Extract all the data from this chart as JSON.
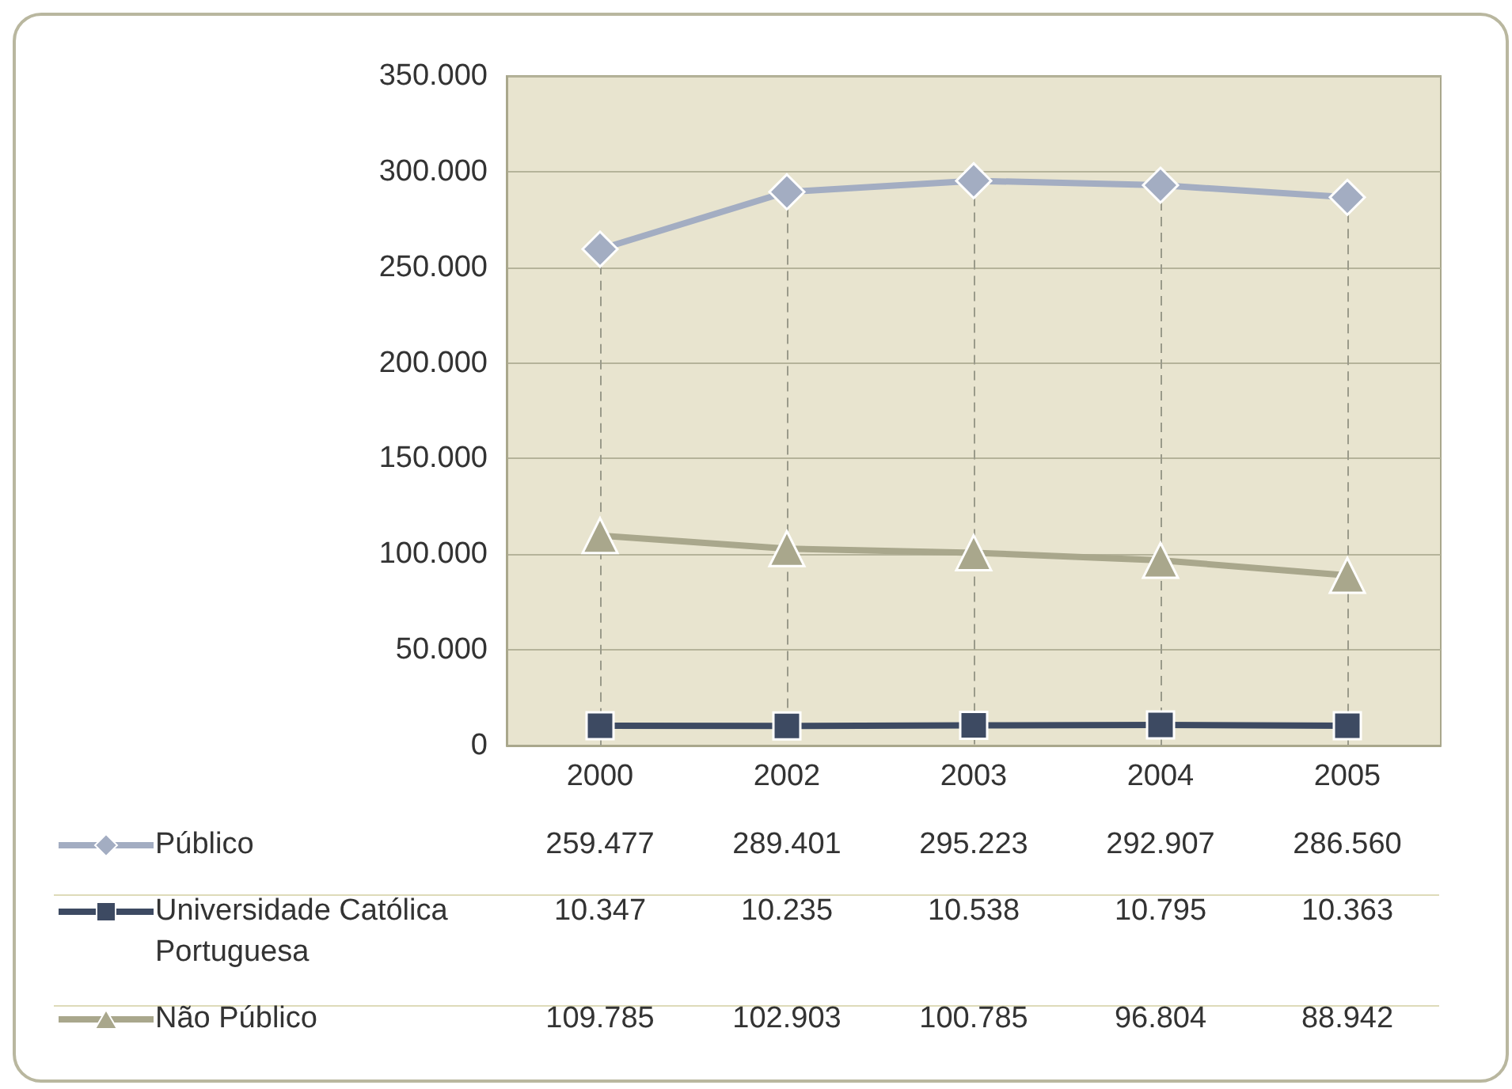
{
  "chart_data": {
    "type": "line",
    "categories": [
      "2000",
      "2002",
      "2003",
      "2004",
      "2005"
    ],
    "series": [
      {
        "name": "Público",
        "color": "#a3adc2",
        "marker": "diamond",
        "values": [
          259477,
          289401,
          295223,
          292907,
          286560
        ],
        "value_labels": [
          "259.477",
          "289.401",
          "295.223",
          "292.907",
          "286.560"
        ]
      },
      {
        "name": "Universidade Católica Portuguesa",
        "color": "#3d4a62",
        "marker": "square",
        "values": [
          10347,
          10235,
          10538,
          10795,
          10363
        ],
        "value_labels": [
          "10.347",
          "10.235",
          "10.538",
          "10.795",
          "10.363"
        ]
      },
      {
        "name": "Não Público",
        "color": "#a9a78c",
        "marker": "triangle",
        "values": [
          109785,
          102903,
          100785,
          96804,
          88942
        ],
        "value_labels": [
          "109.785",
          "102.903",
          "100.785",
          "96.804",
          "88.942"
        ]
      }
    ],
    "ylim": [
      0,
      350000
    ],
    "yticks": [
      0,
      {
        "value": 50000,
        "label": "50.000"
      },
      {
        "value": 100000,
        "label": "100.000"
      },
      {
        "value": 150000,
        "label": "150.000"
      },
      {
        "value": 200000,
        "label": "200.000"
      },
      {
        "value": 250000,
        "label": "250.000"
      },
      {
        "value": 300000,
        "label": "300.000"
      },
      {
        "value": 350000,
        "label": "350.000"
      }
    ],
    "grid": true,
    "legend": "bottom",
    "line_style": "solid"
  }
}
